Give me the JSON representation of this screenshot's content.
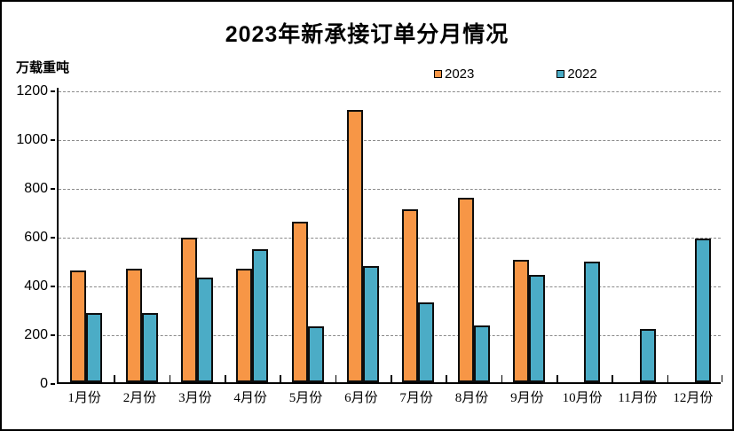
{
  "chart_data": {
    "type": "bar",
    "title": "2023年新承接订单分月情况",
    "ylabel": "万载重吨",
    "xlabel": "",
    "legend_position": "top",
    "grid": "horizontal-dashed",
    "ylim": [
      0,
      1200
    ],
    "ytick_interval": 200,
    "ytick_labels": [
      "1200",
      "1000",
      "800",
      "600",
      "400",
      "200",
      "0"
    ],
    "categories": [
      "1月份",
      "2月份",
      "3月份",
      "4月份",
      "5月份",
      "6月份",
      "7月份",
      "8月份",
      "9月份",
      "10月份",
      "11月份",
      "12月份"
    ],
    "series": [
      {
        "name": "2023",
        "color": "#F79646",
        "values": [
          460,
          464,
          591,
          466,
          660,
          1118,
          708,
          755,
          501,
          null,
          null,
          null
        ]
      },
      {
        "name": "2022",
        "color": "#4BACC6",
        "values": [
          283,
          283,
          428,
          545,
          229,
          475,
          327,
          233,
          440,
          493,
          220,
          590
        ]
      }
    ]
  },
  "frame": {
    "background": "#FFFFFF",
    "border_color": "#000000",
    "grid_color": "#8A8A8A",
    "axis_color": "#000000",
    "bar_outline_color": "#0D0D0D",
    "text_color": "#000000"
  }
}
